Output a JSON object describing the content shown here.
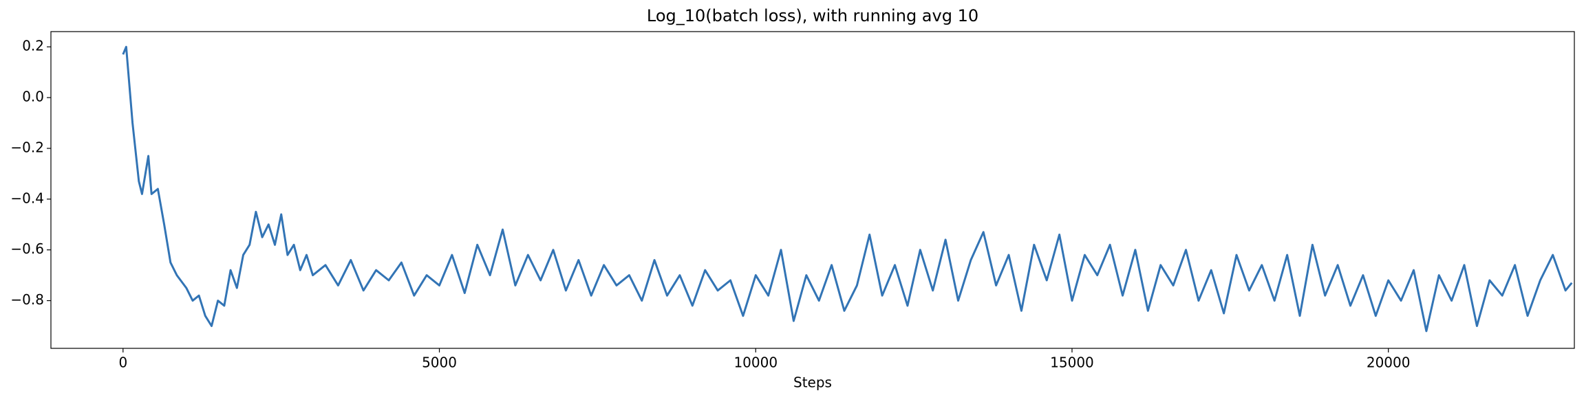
{
  "chart_data": {
    "type": "line",
    "title": "Log_10(batch loss), with running avg 10",
    "xlabel": "Steps",
    "xlim": [
      -1140,
      22940
    ],
    "ylim": [
      -0.988,
      0.26
    ],
    "xticks": [
      0,
      5000,
      10000,
      15000,
      20000
    ],
    "yticks": [
      {
        "value": -0.8,
        "label": "−0.8"
      },
      {
        "value": -0.6,
        "label": "−0.6"
      },
      {
        "value": -0.4,
        "label": "−0.4"
      },
      {
        "value": -0.2,
        "label": "−0.2"
      },
      {
        "value": 0,
        "label": "0.0"
      },
      0.2
    ],
    "grid": false,
    "x": [
      0,
      50,
      150,
      250,
      300,
      400,
      450,
      550,
      650,
      750,
      850,
      1000,
      1100,
      1200,
      1300,
      1400,
      1500,
      1600,
      1700,
      1800,
      1900,
      2000,
      2100,
      2200,
      2300,
      2400,
      2500,
      2600,
      2700,
      2800,
      2900,
      3000,
      3200,
      3400,
      3600,
      3800,
      4000,
      4200,
      4400,
      4600,
      4800,
      5000,
      5200,
      5400,
      5600,
      5800,
      6000,
      6200,
      6400,
      6600,
      6800,
      7000,
      7200,
      7400,
      7600,
      7800,
      8000,
      8200,
      8400,
      8600,
      8800,
      9000,
      9200,
      9400,
      9600,
      9800,
      10000,
      10200,
      10400,
      10600,
      10800,
      11000,
      11200,
      11400,
      11600,
      11800,
      12000,
      12200,
      12400,
      12600,
      12800,
      13000,
      13200,
      13400,
      13600,
      13800,
      14000,
      14200,
      14400,
      14600,
      14800,
      15000,
      15200,
      15400,
      15600,
      15800,
      16000,
      16200,
      16400,
      16600,
      16800,
      17000,
      17200,
      17400,
      17600,
      17800,
      18000,
      18200,
      18400,
      18600,
      18800,
      19000,
      19200,
      19400,
      19600,
      19800,
      20000,
      20200,
      20400,
      20600,
      20800,
      21000,
      21200,
      21400,
      21600,
      21800,
      22000,
      22200,
      22400,
      22600,
      22800,
      22900
    ],
    "series": [
      {
        "color": "#3274b5",
        "values": [
          0.17,
          0.2,
          -0.1,
          -0.33,
          -0.38,
          -0.23,
          -0.38,
          -0.36,
          -0.5,
          -0.65,
          -0.7,
          -0.75,
          -0.8,
          -0.78,
          -0.86,
          -0.9,
          -0.8,
          -0.82,
          -0.68,
          -0.75,
          -0.62,
          -0.58,
          -0.45,
          -0.55,
          -0.5,
          -0.58,
          -0.46,
          -0.62,
          -0.58,
          -0.68,
          -0.62,
          -0.7,
          -0.66,
          -0.74,
          -0.64,
          -0.76,
          -0.68,
          -0.72,
          -0.65,
          -0.78,
          -0.7,
          -0.74,
          -0.62,
          -0.77,
          -0.58,
          -0.7,
          -0.52,
          -0.74,
          -0.62,
          -0.72,
          -0.6,
          -0.76,
          -0.64,
          -0.78,
          -0.66,
          -0.74,
          -0.7,
          -0.8,
          -0.64,
          -0.78,
          -0.7,
          -0.82,
          -0.68,
          -0.76,
          -0.72,
          -0.86,
          -0.7,
          -0.78,
          -0.6,
          -0.88,
          -0.7,
          -0.8,
          -0.66,
          -0.84,
          -0.74,
          -0.54,
          -0.78,
          -0.66,
          -0.82,
          -0.6,
          -0.76,
          -0.56,
          -0.8,
          -0.64,
          -0.53,
          -0.74,
          -0.62,
          -0.84,
          -0.58,
          -0.72,
          -0.54,
          -0.8,
          -0.62,
          -0.7,
          -0.58,
          -0.78,
          -0.6,
          -0.84,
          -0.66,
          -0.74,
          -0.6,
          -0.8,
          -0.68,
          -0.85,
          -0.62,
          -0.76,
          -0.66,
          -0.8,
          -0.62,
          -0.86,
          -0.58,
          -0.78,
          -0.66,
          -0.82,
          -0.7,
          -0.86,
          -0.72,
          -0.8,
          -0.68,
          -0.92,
          -0.7,
          -0.8,
          -0.66,
          -0.9,
          -0.72,
          -0.78,
          -0.66,
          -0.86,
          -0.72,
          -0.62,
          -0.76,
          -0.73
        ]
      }
    ]
  }
}
